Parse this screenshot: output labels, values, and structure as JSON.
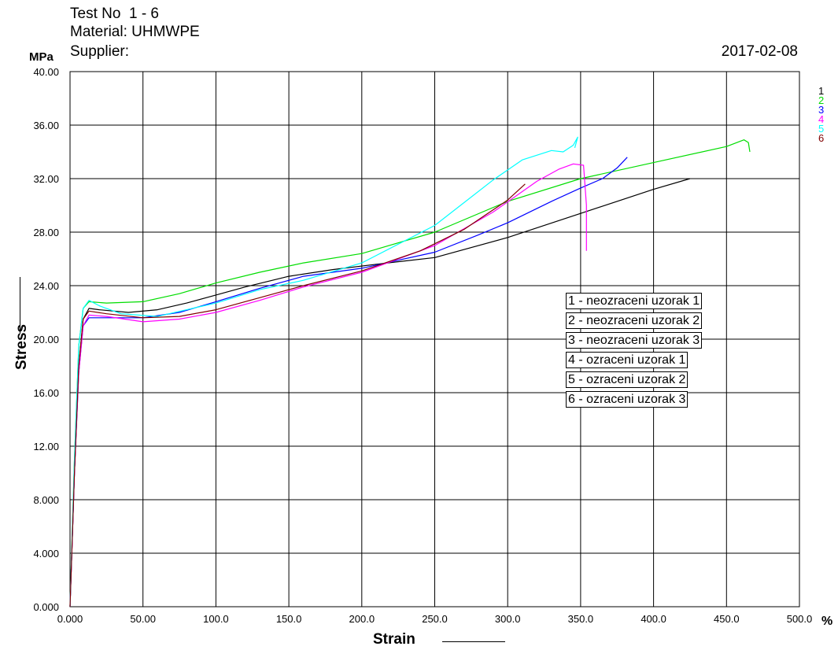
{
  "header": {
    "title": "Test No  1 - 6",
    "material": "Material: UHMWPE",
    "supplier": "Supplier:",
    "date": "2017-02-08"
  },
  "chart_data": {
    "type": "line",
    "xlabel": "Strain",
    "ylabel": "Stress",
    "x_unit": "%",
    "y_unit": "MPa",
    "xlim": [
      0,
      500
    ],
    "ylim": [
      0,
      40
    ],
    "x_ticks": [
      "0.000",
      "50.00",
      "100.0",
      "150.0",
      "200.0",
      "250.0",
      "300.0",
      "350.0",
      "400.0",
      "450.0",
      "500.0"
    ],
    "y_ticks": [
      "0.000",
      "4.000",
      "8.000",
      "12.00",
      "16.00",
      "20.00",
      "24.00",
      "28.00",
      "32.00",
      "36.00",
      "40.00"
    ],
    "grid": true,
    "legend_position": "right-center",
    "series": [
      {
        "name": "1 - neozraceni uzorak 1",
        "tag": "1",
        "color": "#000000",
        "points": [
          [
            0,
            0
          ],
          [
            3,
            10
          ],
          [
            6,
            18
          ],
          [
            9,
            21.5
          ],
          [
            13,
            22.3
          ],
          [
            20,
            22.2
          ],
          [
            40,
            22.0
          ],
          [
            60,
            22.2
          ],
          [
            80,
            22.7
          ],
          [
            100,
            23.3
          ],
          [
            120,
            23.9
          ],
          [
            150,
            24.7
          ],
          [
            180,
            25.2
          ],
          [
            210,
            25.6
          ],
          [
            250,
            26.1
          ],
          [
            300,
            27.6
          ],
          [
            350,
            29.4
          ],
          [
            400,
            31.2
          ],
          [
            425,
            32.0
          ]
        ]
      },
      {
        "name": "2 - neozraceni uzorak 2",
        "tag": "2",
        "color": "#00dd00",
        "points": [
          [
            0,
            0
          ],
          [
            3,
            11
          ],
          [
            6,
            19.5
          ],
          [
            9,
            22.3
          ],
          [
            13,
            22.8
          ],
          [
            25,
            22.7
          ],
          [
            50,
            22.8
          ],
          [
            75,
            23.4
          ],
          [
            100,
            24.2
          ],
          [
            130,
            25.0
          ],
          [
            160,
            25.7
          ],
          [
            200,
            26.4
          ],
          [
            250,
            28.0
          ],
          [
            300,
            30.3
          ],
          [
            350,
            32.0
          ],
          [
            400,
            33.2
          ],
          [
            450,
            34.4
          ],
          [
            462,
            34.9
          ],
          [
            465,
            34.7
          ],
          [
            466,
            34.0
          ]
        ]
      },
      {
        "name": "3 - neozraceni uzorak 3",
        "tag": "3",
        "color": "#0000ff",
        "points": [
          [
            0,
            0
          ],
          [
            3,
            10
          ],
          [
            6,
            17.5
          ],
          [
            9,
            21.0
          ],
          [
            13,
            21.6
          ],
          [
            25,
            21.6
          ],
          [
            50,
            21.6
          ],
          [
            75,
            22.0
          ],
          [
            100,
            22.8
          ],
          [
            130,
            23.8
          ],
          [
            160,
            24.7
          ],
          [
            200,
            25.3
          ],
          [
            250,
            26.5
          ],
          [
            280,
            27.8
          ],
          [
            300,
            28.7
          ],
          [
            330,
            30.3
          ],
          [
            350,
            31.3
          ],
          [
            365,
            32.0
          ],
          [
            375,
            32.8
          ],
          [
            382,
            33.6
          ]
        ]
      },
      {
        "name": "4 - ozraceni uzorak 1",
        "tag": "4",
        "color": "#ff00ff",
        "points": [
          [
            0,
            0
          ],
          [
            3,
            10
          ],
          [
            6,
            17.5
          ],
          [
            9,
            21.0
          ],
          [
            13,
            21.8
          ],
          [
            25,
            21.7
          ],
          [
            50,
            21.3
          ],
          [
            75,
            21.5
          ],
          [
            100,
            22.0
          ],
          [
            130,
            22.9
          ],
          [
            160,
            23.9
          ],
          [
            200,
            25.0
          ],
          [
            250,
            27.0
          ],
          [
            290,
            29.5
          ],
          [
            320,
            31.8
          ],
          [
            335,
            32.7
          ],
          [
            345,
            33.1
          ],
          [
            352,
            33.0
          ],
          [
            354,
            30.0
          ],
          [
            354,
            26.6
          ]
        ]
      },
      {
        "name": "5 - ozraceni uzorak 2",
        "tag": "5",
        "color": "#00ffff",
        "points": [
          [
            0,
            0
          ],
          [
            3,
            11
          ],
          [
            6,
            19.5
          ],
          [
            9,
            22.3
          ],
          [
            13,
            22.9
          ],
          [
            20,
            22.5
          ],
          [
            35,
            21.9
          ],
          [
            60,
            21.7
          ],
          [
            80,
            22.2
          ],
          [
            100,
            22.7
          ],
          [
            130,
            23.7
          ],
          [
            160,
            24.4
          ],
          [
            200,
            25.7
          ],
          [
            250,
            28.5
          ],
          [
            290,
            31.9
          ],
          [
            310,
            33.4
          ],
          [
            330,
            34.1
          ],
          [
            338,
            34.0
          ],
          [
            345,
            34.5
          ],
          [
            348,
            35.1
          ],
          [
            346,
            34.3
          ]
        ]
      },
      {
        "name": "6 - ozraceni uzorak 3",
        "tag": "6",
        "color": "#800000",
        "points": [
          [
            0,
            0
          ],
          [
            3,
            10
          ],
          [
            6,
            18
          ],
          [
            9,
            21.5
          ],
          [
            13,
            22.1
          ],
          [
            25,
            21.9
          ],
          [
            50,
            21.6
          ],
          [
            75,
            21.7
          ],
          [
            100,
            22.2
          ],
          [
            130,
            23.1
          ],
          [
            160,
            24.0
          ],
          [
            200,
            25.1
          ],
          [
            240,
            26.6
          ],
          [
            270,
            28.2
          ],
          [
            300,
            30.4
          ],
          [
            312,
            31.6
          ]
        ]
      }
    ]
  }
}
